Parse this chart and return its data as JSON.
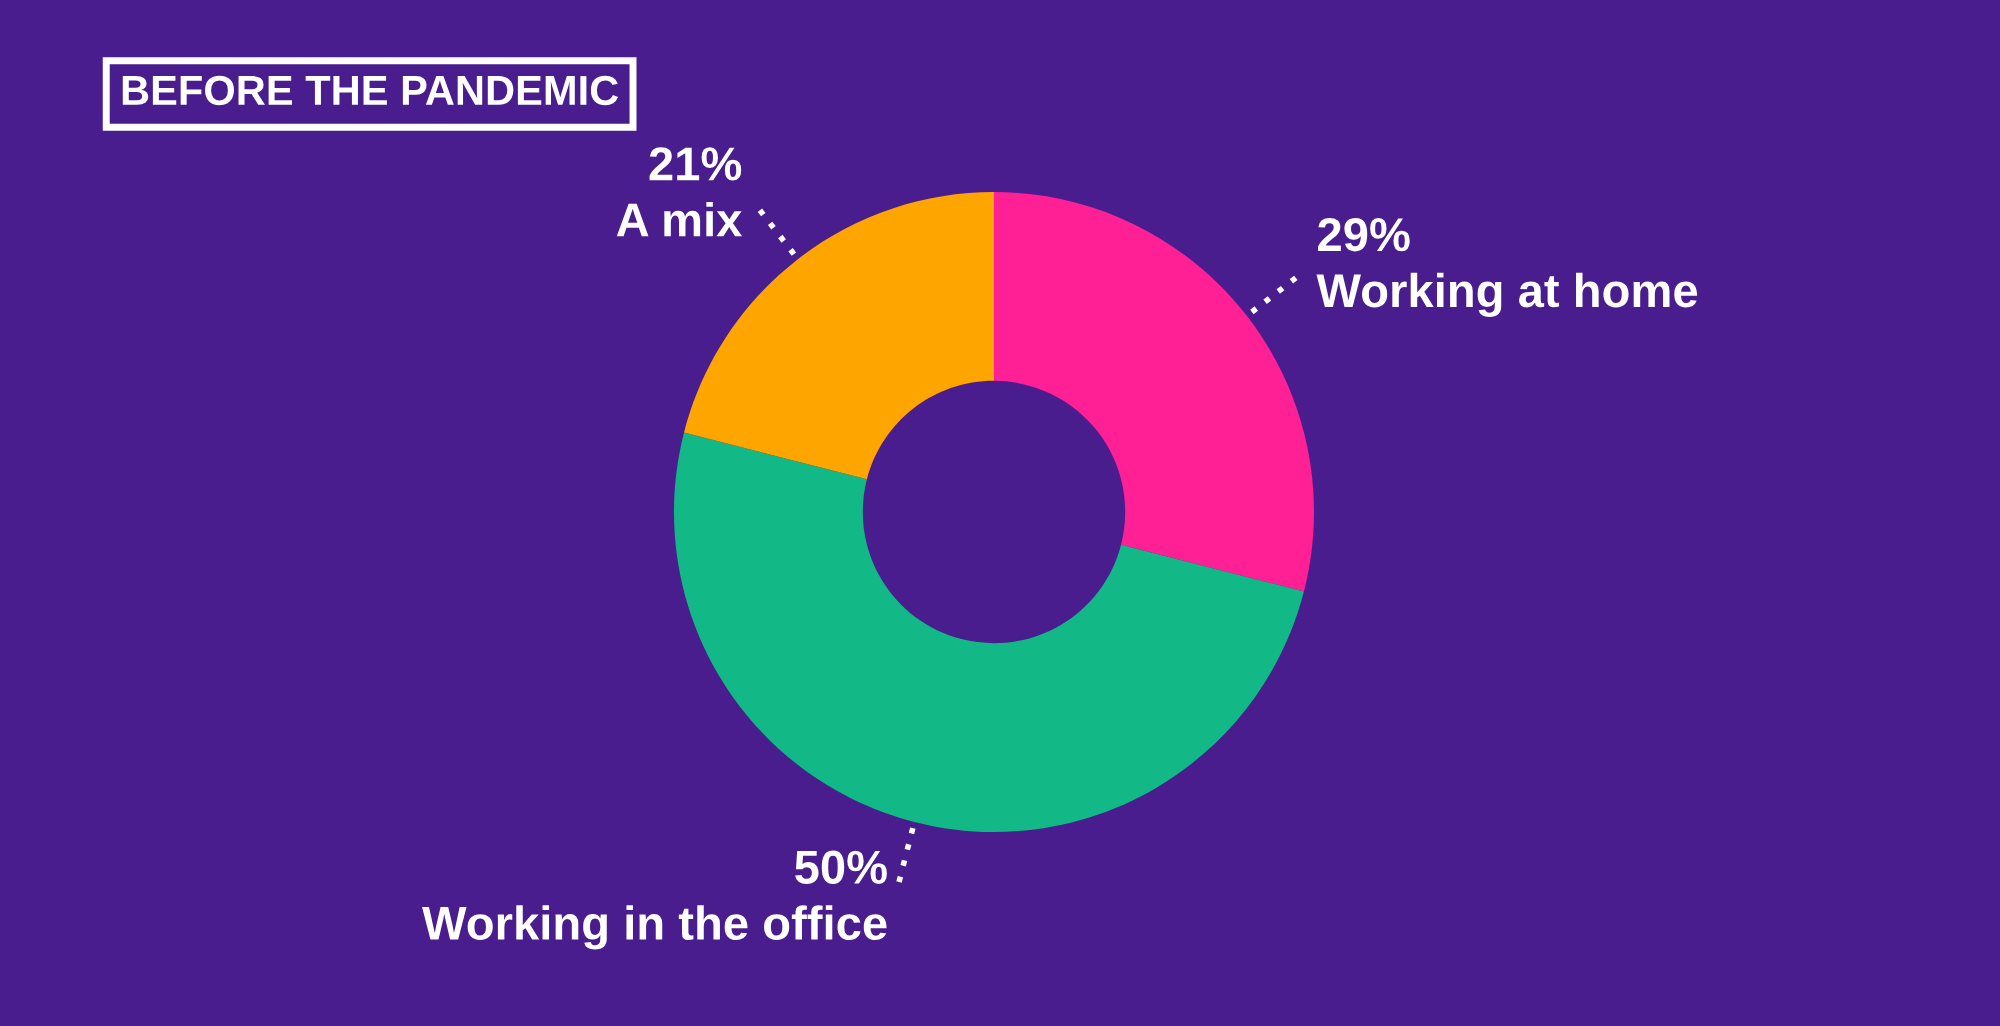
{
  "chart_data": {
    "type": "donut",
    "title": "BEFORE THE PANDEMIC",
    "categories": [
      "Working at home",
      "Working in the office",
      "A mix"
    ],
    "values": [
      29,
      50,
      21
    ],
    "value_labels": [
      "29%",
      "50%",
      "21%"
    ],
    "colors": [
      "#ff2096",
      "#12b886",
      "#ffa500"
    ],
    "legend": false
  }
}
